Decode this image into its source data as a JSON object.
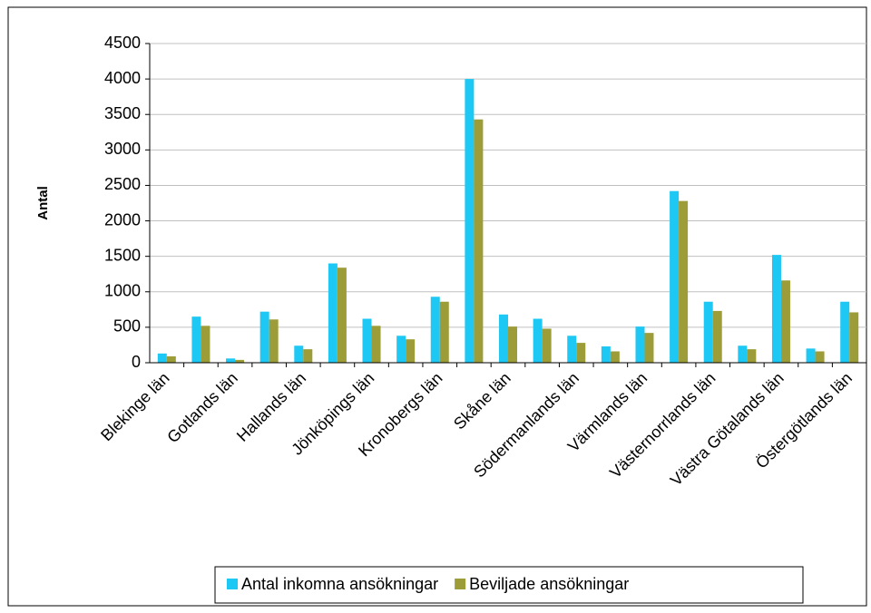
{
  "chart_data": {
    "type": "bar",
    "y_label": "Antal",
    "categories": [
      "Blekinge län",
      null,
      "Gotlands län",
      null,
      "Hallands län",
      null,
      "Jönköpings län",
      null,
      "Kronobergs län",
      null,
      "Skåne län",
      null,
      "Södermanlands län",
      null,
      "Värmlands län",
      null,
      "Västernorrlands län",
      null,
      "Västra Götalands län",
      null,
      "Östergötlands län"
    ],
    "series": [
      {
        "name": "Antal inkomna ansökningar",
        "color": "#1ec8f5",
        "values": [
          130,
          650,
          60,
          720,
          240,
          1400,
          620,
          380,
          930,
          4000,
          680,
          620,
          380,
          230,
          510,
          2420,
          860,
          240,
          1520,
          200,
          860
        ]
      },
      {
        "name": "Beviljade ansökningar",
        "color": "#9c9c38",
        "values": [
          90,
          520,
          40,
          610,
          190,
          1340,
          520,
          330,
          860,
          3430,
          510,
          480,
          280,
          160,
          420,
          2280,
          730,
          190,
          1160,
          160,
          710
        ]
      }
    ],
    "ylim": [
      0,
      4500
    ],
    "yticks": [
      0,
      500,
      1000,
      1500,
      2000,
      2500,
      3000,
      3500,
      4000,
      4500
    ],
    "grid": true,
    "legend": "bottom"
  }
}
